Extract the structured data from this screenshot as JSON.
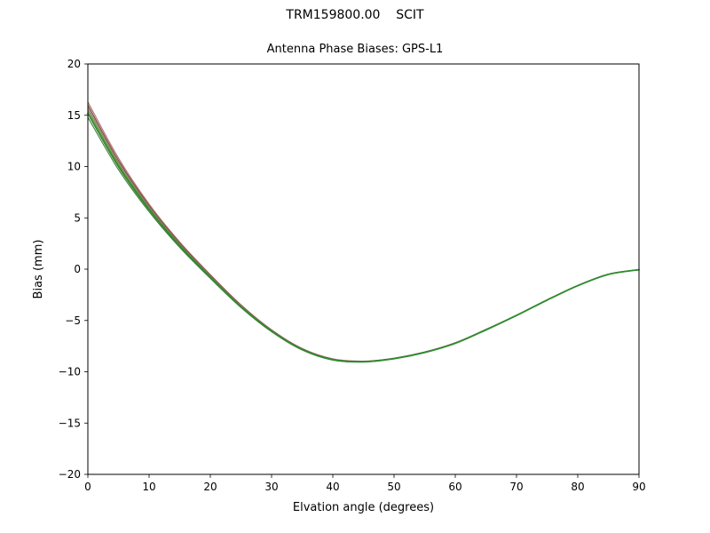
{
  "header": {
    "title": "TRM159800.00    SCIT",
    "subtitle": "Antenna Phase Biases: GPS-L1"
  },
  "chart_data": {
    "type": "line",
    "title": "TRM159800.00    SCIT",
    "subtitle": "Antenna Phase Biases: GPS-L1",
    "xlabel": "Elvation angle (degrees)",
    "ylabel": "Bias (mm)",
    "xlim": [
      0,
      90
    ],
    "ylim": [
      -20,
      20
    ],
    "xticks": [
      0,
      10,
      20,
      30,
      40,
      50,
      60,
      70,
      80,
      90
    ],
    "yticks": [
      -20,
      -15,
      -10,
      -5,
      0,
      5,
      10,
      15,
      20
    ],
    "grid": false,
    "legend_position": "none",
    "x": [
      0,
      5,
      10,
      15,
      20,
      25,
      30,
      35,
      40,
      45,
      50,
      55,
      60,
      65,
      70,
      75,
      80,
      85,
      90
    ],
    "series": [
      {
        "name": "bias-curve-1",
        "color": "#a9746e",
        "width": 1.1,
        "values": [
          16.3,
          10.83,
          6.35,
          2.65,
          -0.53,
          -3.47,
          -5.91,
          -7.73,
          -8.74,
          -8.96,
          -8.67,
          -8.07,
          -7.17,
          -5.87,
          -4.48,
          -2.98,
          -1.59,
          -0.49,
          -0.04
        ]
      },
      {
        "name": "bias-curve-2",
        "color": "#8b3e3e",
        "width": 1.1,
        "values": [
          16.0,
          10.6,
          6.2,
          2.54,
          -0.6,
          -3.53,
          -5.95,
          -7.76,
          -8.77,
          -8.98,
          -8.68,
          -8.08,
          -7.18,
          -5.88,
          -4.49,
          -2.99,
          -1.59,
          -0.49,
          -0.05
        ]
      },
      {
        "name": "bias-curve-3",
        "color": "#808080",
        "width": 1.1,
        "values": [
          15.75,
          10.41,
          6.08,
          2.45,
          -0.66,
          -3.57,
          -5.98,
          -7.79,
          -8.79,
          -8.99,
          -8.69,
          -8.09,
          -7.19,
          -5.89,
          -4.5,
          -3.0,
          -1.6,
          -0.5,
          -0.05
        ]
      },
      {
        "name": "bias-curve-4",
        "color": "#6b8e23",
        "width": 1.1,
        "values": [
          15.5,
          10.22,
          5.95,
          2.37,
          -0.73,
          -3.62,
          -6.01,
          -7.81,
          -8.81,
          -9.01,
          -8.71,
          -8.11,
          -7.2,
          -5.9,
          -4.5,
          -3.0,
          -1.6,
          -0.5,
          -0.05
        ]
      },
      {
        "name": "bias-curve-5",
        "color": "#3f7d3f",
        "width": 1.1,
        "values": [
          14.8,
          9.7,
          5.6,
          2.12,
          -0.9,
          -3.74,
          -6.1,
          -7.88,
          -8.86,
          -9.05,
          -8.74,
          -8.14,
          -7.23,
          -5.93,
          -4.52,
          -3.02,
          -1.62,
          -0.52,
          -0.06
        ]
      },
      {
        "name": "bias-curve-6",
        "color": "#2e8b2e",
        "width": 1.8,
        "values": [
          15.2,
          10.0,
          5.8,
          2.26,
          -0.8,
          -3.67,
          -6.05,
          -7.84,
          -8.83,
          -9.02,
          -8.72,
          -8.12,
          -7.22,
          -5.92,
          -4.51,
          -3.01,
          -1.61,
          -0.51,
          -0.05
        ]
      }
    ]
  }
}
